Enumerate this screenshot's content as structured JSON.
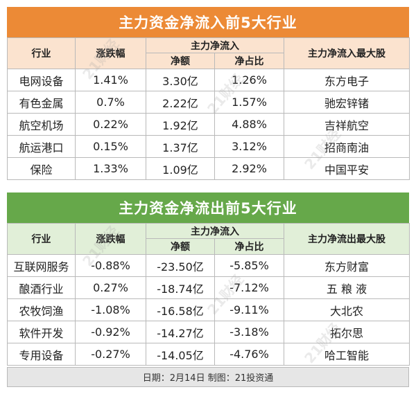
{
  "inflow": {
    "title": "主力资金净流入前5大行业",
    "headers": {
      "industry": "行业",
      "change": "涨跌幅",
      "main_flow": "主力净流入",
      "net_amount": "净额",
      "net_ratio": "净占比",
      "top_stock": "主力净流入最大股"
    },
    "rows": [
      {
        "industry": "电网设备",
        "change": "1.41%",
        "net_amount": "3.30亿",
        "net_ratio": "1.26%",
        "top_stock": "东方电子"
      },
      {
        "industry": "有色金属",
        "change": "0.7%",
        "net_amount": "2.22亿",
        "net_ratio": "1.57%",
        "top_stock": "驰宏锌锗"
      },
      {
        "industry": "航空机场",
        "change": "0.22%",
        "net_amount": "1.92亿",
        "net_ratio": "4.88%",
        "top_stock": "吉祥航空"
      },
      {
        "industry": "航运港口",
        "change": "0.15%",
        "net_amount": "1.37亿",
        "net_ratio": "3.12%",
        "top_stock": "招商南油"
      },
      {
        "industry": "保险",
        "change": "1.33%",
        "net_amount": "1.09亿",
        "net_ratio": "2.92%",
        "top_stock": "中国平安"
      }
    ]
  },
  "outflow": {
    "title": "主力资金净流出前5大行业",
    "headers": {
      "industry": "行业",
      "change": "涨跌幅",
      "main_flow": "主力净流入",
      "net_amount": "净额",
      "net_ratio": "净占比",
      "top_stock": "主力净流出最大股"
    },
    "rows": [
      {
        "industry": "互联网服务",
        "change": "-0.88%",
        "net_amount": "-23.50亿",
        "net_ratio": "-5.85%",
        "top_stock": "东方财富"
      },
      {
        "industry": "酿酒行业",
        "change": "0.27%",
        "net_amount": "-18.74亿",
        "net_ratio": "-7.12%",
        "top_stock": "五 粮 液"
      },
      {
        "industry": "农牧饲渔",
        "change": "-1.08%",
        "net_amount": "-16.58亿",
        "net_ratio": "-9.11%",
        "top_stock": "大北农"
      },
      {
        "industry": "软件开发",
        "change": "-0.92%",
        "net_amount": "-14.27亿",
        "net_ratio": "-3.18%",
        "top_stock": "拓尔思"
      },
      {
        "industry": "专用设备",
        "change": "-0.27%",
        "net_amount": "-14.05亿",
        "net_ratio": "-4.76%",
        "top_stock": "哈工智能"
      }
    ]
  },
  "footer": "日期：2月14日 制图：21投资通",
  "watermark": "21财经"
}
